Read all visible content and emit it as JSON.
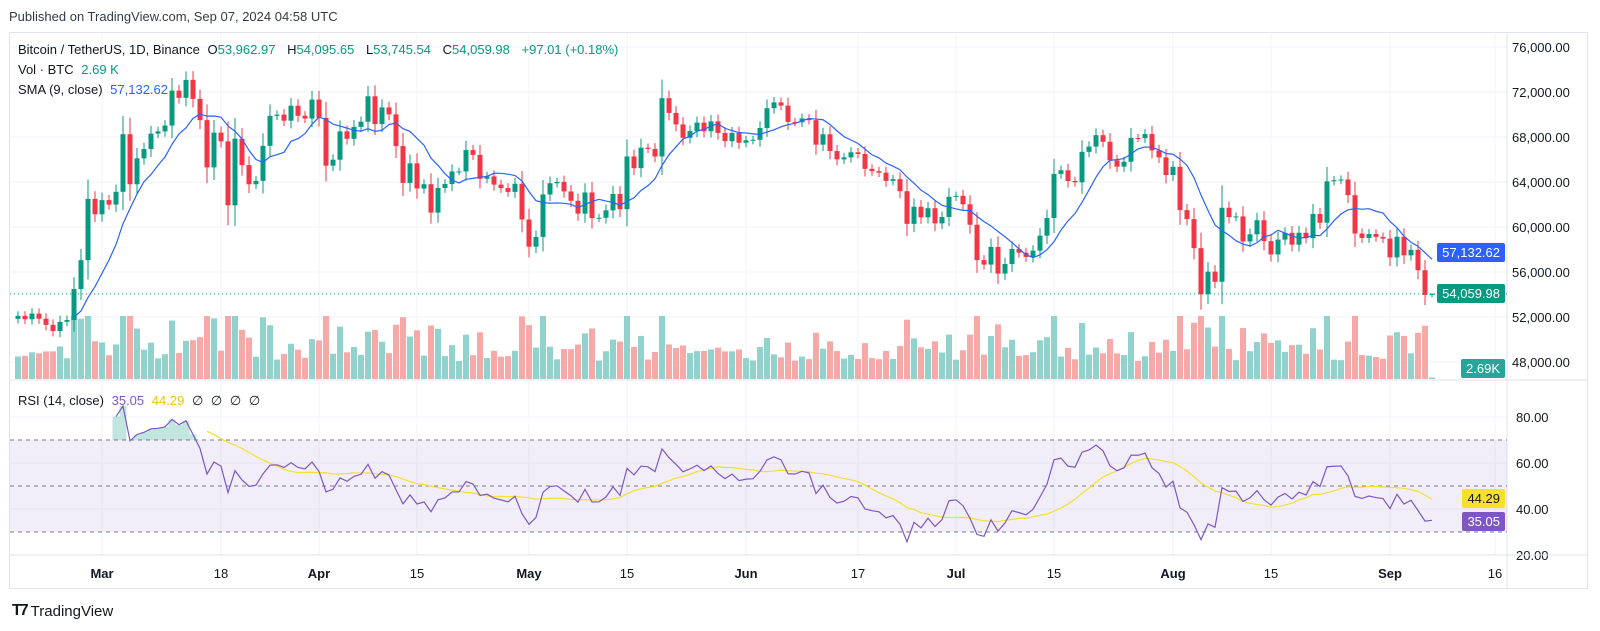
{
  "published": "Published on TradingView.com, Sep 07, 2024 04:58 UTC",
  "legend": {
    "symbol": "Bitcoin / TetherUS, 1D, Binance",
    "o_label": "O",
    "o": "53,962.97",
    "h_label": "H",
    "h": "54,095.65",
    "l_label": "L",
    "l": "53,745.54",
    "c_label": "C",
    "c": "54,059.98",
    "change": "+97.01 (+0.18%)",
    "vol_label": "Vol · BTC",
    "vol": "2.69 K",
    "sma_label": "SMA (9, close)",
    "sma": "57,132.62",
    "rsi_label": "RSI (14, close)",
    "rsi": "35.05",
    "rsi_ma": "44.29",
    "rsi_extra": [
      "∅",
      "∅",
      "∅",
      "∅"
    ]
  },
  "price_tags": {
    "sma": "57,132.62",
    "last": "54,059.98",
    "vol": "2.69K",
    "rsi_ma": "44.29",
    "rsi": "35.05"
  },
  "colors": {
    "up": "#089981",
    "down": "#f23645",
    "vol_up": "#92d2cc",
    "vol_down": "#f7a9a7",
    "sma": "#2962ff",
    "rsi": "#7e57c2",
    "rsi_ma": "#f5e02a"
  },
  "branding": "TradingView",
  "chart_data": {
    "type": "candlestick",
    "title": "Bitcoin / TetherUS, 1D, Binance",
    "start_date": "2024-02-18",
    "closes": [
      52100,
      51800,
      52300,
      51850,
      51300,
      50750,
      51570,
      51730,
      54490,
      57050,
      62500,
      61130,
      62390,
      61990,
      63130,
      68250,
      63800,
      66100,
      66930,
      68300,
      68500,
      69020,
      72120,
      71480,
      73080,
      71390,
      69500,
      65300,
      68390,
      67610,
      61930,
      67850,
      65500,
      63800,
      64100,
      67210,
      69880,
      69990,
      69450,
      70780,
      69890,
      69640,
      71330,
      69700,
      65450,
      65980,
      68500,
      67840,
      68900,
      69360,
      71620,
      69150,
      70630,
      70010,
      67190,
      63920,
      65660,
      63420,
      63800,
      61280,
      63470,
      63820,
      64940,
      64940,
      66840,
      66410,
      64290,
      64500,
      63770,
      63460,
      63120,
      63840,
      60670,
      58250,
      59120,
      62890,
      63890,
      64010,
      63160,
      62330,
      61190,
      63070,
      60790,
      60820,
      61480,
      62940,
      61580,
      66270,
      65230,
      67050,
      66940,
      66270,
      71450,
      70140,
      69120,
      67930,
      68530,
      69280,
      68510,
      69390,
      68360,
      67630,
      68360,
      67490,
      67710,
      67750,
      68800,
      70560,
      71080,
      70790,
      69340,
      69310,
      69650,
      69500,
      67320,
      68240,
      66750,
      66010,
      66190,
      66640,
      66490,
      65170,
      64960,
      64830,
      64100,
      64250,
      63180,
      60280,
      61800,
      60860,
      61670,
      60320,
      60890,
      62680,
      62770,
      62020,
      60200,
      57060,
      56660,
      58230,
      55860,
      56710,
      58050,
      57720,
      57340,
      57900,
      59230,
      60800,
      64720,
      65040,
      64090,
      63970,
      66680,
      67150,
      68160,
      67580,
      65930,
      65370,
      65800,
      67910,
      67900,
      68260,
      66810,
      66190,
      64620,
      65350,
      61500,
      60700,
      58120,
      54020,
      56030,
      55130,
      61710,
      60880,
      60940,
      58710,
      59350,
      60600,
      58740,
      57560,
      58880,
      59480,
      58430,
      59490,
      59010,
      61160,
      60380,
      64060,
      64160,
      64220,
      62830,
      59420,
      59030,
      59380,
      59120,
      58970,
      57300,
      59130,
      57480,
      57970,
      56160,
      53962.97,
      54059.98
    ],
    "last_candle": {
      "date": "2024-09-07",
      "open": 53962.97,
      "high": 54095.65,
      "low": 53745.54,
      "close": 54059.98,
      "volume_k": 2.69
    },
    "indicators": {
      "sma_period": 9,
      "rsi_period": 14,
      "rsi_ma_period": 14,
      "rsi_bands": [
        70,
        50,
        30
      ]
    },
    "price_axis": {
      "ticks": [
        "76,000.00",
        "72,000.00",
        "68,000.00",
        "64,000.00",
        "60,000.00",
        "56,000.00",
        "52,000.00",
        "48,000.00"
      ],
      "values": [
        76000,
        72000,
        68000,
        64000,
        60000,
        56000,
        52000,
        48000
      ]
    },
    "rsi_axis": {
      "ticks": [
        "80.00",
        "60.00",
        "40.00",
        "20.00"
      ],
      "values": [
        80,
        60,
        40,
        20
      ]
    },
    "time_axis": [
      {
        "label": "Mar",
        "date": "2024-03-01",
        "bold": true
      },
      {
        "label": "18",
        "date": "2024-03-18"
      },
      {
        "label": "Apr",
        "date": "2024-04-01",
        "bold": true
      },
      {
        "label": "15",
        "date": "2024-04-15"
      },
      {
        "label": "May",
        "date": "2024-05-01",
        "bold": true
      },
      {
        "label": "15",
        "date": "2024-05-15"
      },
      {
        "label": "Jun",
        "date": "2024-06-01",
        "bold": true
      },
      {
        "label": "17",
        "date": "2024-06-17"
      },
      {
        "label": "Jul",
        "date": "2024-07-01",
        "bold": true
      },
      {
        "label": "15",
        "date": "2024-07-15"
      },
      {
        "label": "Aug",
        "date": "2024-08-01",
        "bold": true
      },
      {
        "label": "15",
        "date": "2024-08-15"
      },
      {
        "label": "Sep",
        "date": "2024-09-01",
        "bold": true
      },
      {
        "label": "16",
        "date": "2024-09-16"
      }
    ]
  }
}
